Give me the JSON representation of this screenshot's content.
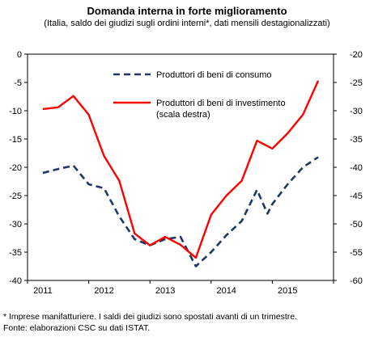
{
  "chart_data": {
    "type": "line",
    "title": "Domanda interna in forte miglioramento",
    "subtitle": "(Italia, saldo dei giudizi sugli ordini interni*, dati mensili destagionalizzati)",
    "x_tick_labels": [
      "2011",
      "2012",
      "2013",
      "2014",
      "2015"
    ],
    "left_axis": {
      "ylim": [
        -40,
        0
      ],
      "ticks": [
        "0",
        "-5",
        "-10",
        "-15",
        "-20",
        "-25",
        "-30",
        "-35",
        "-40"
      ]
    },
    "right_axis": {
      "ylim": [
        -60,
        -20
      ],
      "ticks": [
        "-20",
        "-25",
        "-30",
        "-35",
        "-40",
        "-45",
        "-50",
        "-55",
        "-60"
      ]
    },
    "grid": false,
    "legend_position": "top-right",
    "series": [
      {
        "name": "Produttori di beni di consumo",
        "axis": "left",
        "style": "dashed",
        "color": "#1f3864",
        "x": [
          2011.0,
          2011.25,
          2011.5,
          2011.75,
          2012.0,
          2012.25,
          2012.5,
          2012.75,
          2013.0,
          2013.25,
          2013.5,
          2013.75,
          2014.0,
          2014.25,
          2014.5,
          2014.67,
          2014.75,
          2015.0,
          2015.25,
          2015.5
        ],
        "values": [
          -21.0,
          -20.3,
          -19.7,
          -23.0,
          -23.7,
          -28.7,
          -32.7,
          -33.8,
          -32.7,
          -32.3,
          -37.5,
          -35.0,
          -32.0,
          -29.5,
          -24.0,
          -28.2,
          -26.5,
          -23.0,
          -20.0,
          -18.2
        ]
      },
      {
        "name": "Produttori di beni di investimento (scala destra)",
        "axis": "right",
        "style": "solid",
        "color": "#ff0000",
        "x": [
          2011.0,
          2011.25,
          2011.5,
          2011.75,
          2012.0,
          2012.25,
          2012.5,
          2012.75,
          2013.0,
          2013.25,
          2013.5,
          2013.75,
          2014.0,
          2014.25,
          2014.5,
          2014.75,
          2015.0,
          2015.25,
          2015.5
        ],
        "values": [
          -29.7,
          -29.4,
          -27.4,
          -30.7,
          -38.0,
          -42.4,
          -51.7,
          -53.8,
          -52.3,
          -53.7,
          -56.0,
          -48.4,
          -45.0,
          -42.4,
          -35.3,
          -36.7,
          -34.0,
          -30.7,
          -24.7
        ]
      }
    ]
  },
  "footnote_lines": [
    "* Imprese manifatturiere. I saldi dei giudizi sono spostati avanti di un trimestre.",
    "Fonte: elaborazioni CSC su dati ISTAT."
  ]
}
